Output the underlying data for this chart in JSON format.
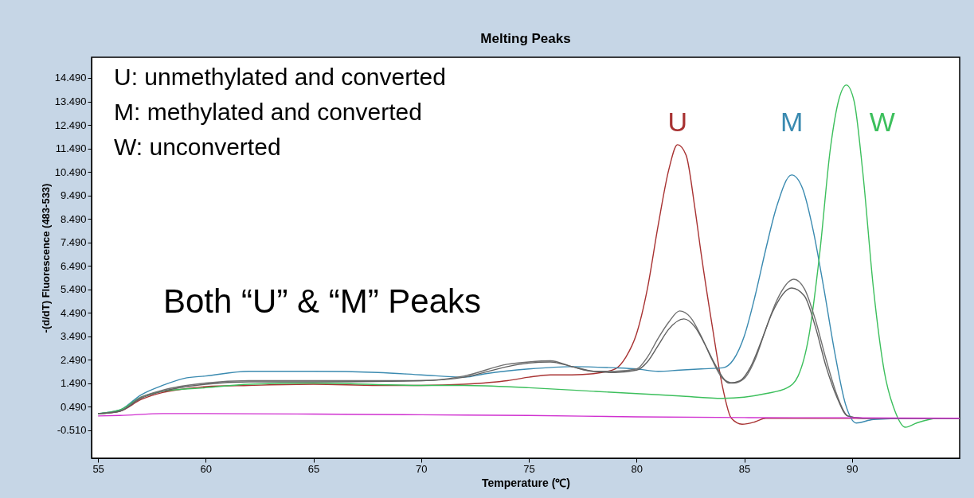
{
  "chart_data": {
    "type": "line",
    "title": "Melting Peaks",
    "xlabel": "Temperature (℃)",
    "ylabel": "-(d/dT) Fluorescence (483-533)",
    "xlim": [
      54.7,
      95.0
    ],
    "xticks": [
      55,
      60,
      65,
      70,
      75,
      80,
      85,
      90
    ],
    "ylim": [
      -1.7,
      15.37
    ],
    "yticks": [
      {
        "value": -0.51,
        "label": "-0.510"
      },
      {
        "value": 0.49,
        "label": "0.490"
      },
      {
        "value": 1.49,
        "label": "1.490"
      },
      {
        "value": 2.49,
        "label": "2.490"
      },
      {
        "value": 3.49,
        "label": "3.490"
      },
      {
        "value": 4.49,
        "label": "4.490"
      },
      {
        "value": 5.49,
        "label": "5.490"
      },
      {
        "value": 6.49,
        "label": "6.490"
      },
      {
        "value": 7.49,
        "label": "7.490"
      },
      {
        "value": 8.49,
        "label": "8.490"
      },
      {
        "value": 9.49,
        "label": "9.490"
      },
      {
        "value": 10.49,
        "label": "10.490"
      },
      {
        "value": 11.49,
        "label": "11.490"
      },
      {
        "value": 12.49,
        "label": "12.490"
      },
      {
        "value": 13.49,
        "label": "13.490"
      },
      {
        "value": 14.49,
        "label": "14.490"
      }
    ],
    "grid": false,
    "legend": false,
    "marker": "none",
    "line_style": "solid",
    "annotations": [
      "U: unmethylated and converted",
      "M: methylated and converted",
      "W: unconverted",
      "Both “U” & “M” Peaks"
    ],
    "series": [
      {
        "name": "U",
        "color": "#a83232",
        "x": [
          55,
          56,
          57,
          58,
          59,
          60,
          62,
          65,
          68,
          70,
          72,
          74,
          75,
          76,
          77,
          78,
          79,
          79.5,
          80,
          80.5,
          81,
          81.5,
          81.9,
          82.3,
          82.7,
          83,
          83.5,
          84,
          84.4,
          84.9,
          85.5,
          86,
          88,
          90,
          92,
          95
        ],
        "values": [
          0.2,
          0.3,
          0.8,
          1.1,
          1.25,
          1.35,
          1.4,
          1.45,
          1.4,
          1.4,
          1.45,
          1.6,
          1.75,
          1.85,
          1.85,
          1.9,
          2.1,
          2.6,
          3.6,
          5.5,
          8.2,
          10.6,
          11.65,
          11.2,
          9.0,
          7.0,
          4.0,
          1.3,
          0.0,
          -0.25,
          -0.15,
          0.0,
          0.0,
          0.0,
          0.0,
          0.0
        ]
      },
      {
        "name": "M",
        "color": "#3a8ab0",
        "x": [
          55,
          56,
          57,
          58,
          59,
          60,
          62,
          65,
          68,
          70,
          72,
          73,
          75,
          77,
          79,
          80,
          81,
          82,
          83,
          84,
          84.5,
          85,
          85.5,
          86,
          86.5,
          87.2,
          87.7,
          88.2,
          88.7,
          89.2,
          89.7,
          90.2,
          91,
          93,
          95
        ],
        "values": [
          0.2,
          0.35,
          1.0,
          1.4,
          1.7,
          1.8,
          2.0,
          2.0,
          1.95,
          1.85,
          1.75,
          1.9,
          2.1,
          2.2,
          2.15,
          2.1,
          2.0,
          2.05,
          2.1,
          2.15,
          2.5,
          3.5,
          5.2,
          7.2,
          9.0,
          10.36,
          9.8,
          8.0,
          5.5,
          2.8,
          0.6,
          -0.2,
          -0.05,
          0.0,
          0.0
        ]
      },
      {
        "name": "W",
        "color": "#3cbf5c",
        "x": [
          55,
          56,
          57,
          58,
          60,
          62,
          65,
          70,
          72,
          75,
          78,
          80,
          82,
          84,
          85,
          86,
          87,
          87.5,
          88,
          88.5,
          89,
          89.4,
          89.74,
          90.1,
          90.5,
          91,
          91.5,
          92,
          92.48,
          93,
          94,
          95
        ],
        "values": [
          0.2,
          0.35,
          0.9,
          1.15,
          1.3,
          1.45,
          1.5,
          1.4,
          1.4,
          1.3,
          1.15,
          1.05,
          0.95,
          0.85,
          0.9,
          1.05,
          1.3,
          1.8,
          3.5,
          7,
          11.5,
          13.6,
          14.19,
          13.5,
          10.5,
          5.5,
          2.0,
          0.3,
          -0.38,
          -0.2,
          0.0,
          0.0
        ]
      },
      {
        "color": "#707070",
        "x": [
          55,
          56,
          57,
          58,
          60,
          62,
          65,
          70,
          72,
          74,
          75,
          76,
          77,
          78,
          79,
          80,
          80.5,
          81,
          81.5,
          82,
          82.5,
          83,
          83.5,
          84,
          84.5,
          85,
          85.5,
          86,
          86.5,
          87.3,
          87.8,
          88.3,
          88.8,
          89.3,
          89.8,
          90.5,
          92,
          95
        ],
        "values": [
          0.2,
          0.3,
          0.9,
          1.2,
          1.5,
          1.6,
          1.6,
          1.6,
          1.8,
          2.3,
          2.4,
          2.45,
          2.2,
          2.0,
          2.0,
          2.1,
          2.6,
          3.4,
          4.1,
          4.57,
          4.3,
          3.5,
          2.5,
          1.7,
          1.5,
          1.7,
          2.5,
          3.8,
          5.0,
          5.92,
          5.5,
          4.2,
          2.5,
          1.0,
          0.1,
          0.0,
          0.0,
          0.0
        ]
      },
      {
        "color": "#606060",
        "x": [
          55,
          56,
          57,
          58,
          60,
          62,
          65,
          70,
          72,
          74,
          75,
          76,
          77,
          78,
          79,
          80,
          80.5,
          81,
          81.5,
          82.2,
          82.7,
          83.2,
          83.7,
          84.3,
          84.8,
          85.3,
          85.8,
          86.3,
          87.2,
          87.8,
          88.3,
          88.8,
          89.3,
          89.8,
          90.5,
          92,
          95
        ],
        "values": [
          0.2,
          0.3,
          0.85,
          1.15,
          1.45,
          1.55,
          1.55,
          1.6,
          1.75,
          2.2,
          2.35,
          2.4,
          2.2,
          2.0,
          1.95,
          2.05,
          2.4,
          3.1,
          3.8,
          4.23,
          3.9,
          3.1,
          2.2,
          1.5,
          1.6,
          2.2,
          3.3,
          4.5,
          5.55,
          5.2,
          3.9,
          2.2,
          0.9,
          0.1,
          0.0,
          0.0,
          0.0
        ]
      },
      {
        "color": "#d030d0",
        "x": [
          55,
          56,
          58,
          60,
          65,
          70,
          75,
          80,
          85,
          90,
          95
        ],
        "values": [
          0.1,
          0.12,
          0.2,
          0.2,
          0.18,
          0.15,
          0.12,
          0.06,
          0.03,
          0.02,
          0.0
        ]
      }
    ]
  }
}
